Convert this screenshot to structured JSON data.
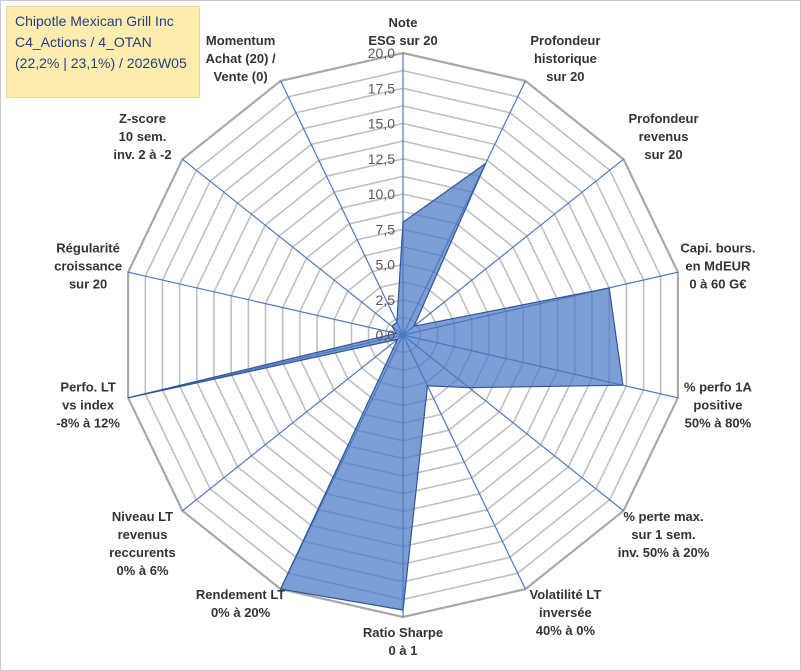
{
  "info": {
    "line1": "Chipotle Mexican Grill Inc",
    "line2": "C4_Actions / 4_OTAN",
    "line3": "(22,2% | 23,1%) / 2026W05"
  },
  "chart_data": {
    "type": "radar",
    "title": "",
    "rmin": 0,
    "rmax": 20,
    "ticks": [
      "0,0",
      "2,5",
      "5,0",
      "7,5",
      "10,0",
      "12,5",
      "15,0",
      "17,5",
      "20,0"
    ],
    "tick_values": [
      0,
      2.5,
      5,
      7.5,
      10,
      12.5,
      15,
      17.5,
      20
    ],
    "grid_rings": 16,
    "axes": [
      {
        "label": [
          "Note",
          "ESG sur 20"
        ],
        "value": 8.0
      },
      {
        "label": [
          "Profondeur",
          "historique",
          "sur 20"
        ],
        "value": 13.5
      },
      {
        "label": [
          "Profondeur",
          "revenus",
          "sur 20"
        ],
        "value": 1.0
      },
      {
        "label": [
          "Capi. bours.",
          "en MdEUR",
          "0 à 60 G€"
        ],
        "value": 15.0
      },
      {
        "label": [
          "% perfo 1A",
          "positive",
          "50% à 80%"
        ],
        "value": 16.0
      },
      {
        "label": [
          "% perte max.",
          "sur 1 sem.",
          "inv. 50% à 20%"
        ],
        "value": 6.0
      },
      {
        "label": [
          "Volatilité LT",
          "inversée",
          "40% à 0%"
        ],
        "value": 4.0
      },
      {
        "label": [
          "Ratio Sharpe",
          "0 à 1"
        ],
        "value": 19.5
      },
      {
        "label": [
          "Rendement LT",
          "0% à 20%"
        ],
        "value": 20.0
      },
      {
        "label": [
          "Niveau LT",
          "revenus",
          "reccurents",
          "0% à 6%"
        ],
        "value": 0.5
      },
      {
        "label": [
          "Perfo. LT",
          "vs index",
          "-8% à 12%"
        ],
        "value": 20.0
      },
      {
        "label": [
          "Régularité",
          "croissance",
          "sur 20"
        ],
        "value": 0.5
      },
      {
        "label": [
          "Z-score",
          "10 sem.",
          "inv. 2 à -2"
        ],
        "value": 1.0
      },
      {
        "label": [
          "Momentum",
          "Achat (20) /",
          "Vente (0)"
        ],
        "value": 1.0
      }
    ],
    "series_color": "#4a78c4",
    "grid_color": "#c0c0c0"
  }
}
